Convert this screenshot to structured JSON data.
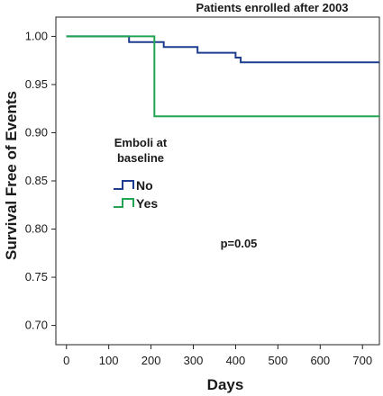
{
  "chart_data": {
    "type": "line",
    "title": "Patients enrolled after 2003",
    "xlabel": "Days",
    "ylabel": "Survival Free of Events",
    "xlim": [
      -25,
      740
    ],
    "ylim": [
      0.68,
      1.02
    ],
    "x_ticks": [
      0,
      100,
      200,
      300,
      400,
      500,
      600,
      700
    ],
    "y_ticks": [
      0.7,
      0.75,
      0.8,
      0.85,
      0.9,
      0.95,
      1.0
    ],
    "y_tick_labels": [
      "0.70",
      "0.75",
      "0.80",
      "0.85",
      "0.90",
      "0.95",
      "1.00"
    ],
    "step": true,
    "legend": {
      "title_lines": [
        "Emboli at",
        "baseline"
      ],
      "placement": "middle-left"
    },
    "series": [
      {
        "name": "No",
        "color": "#1f3d8f",
        "points": [
          [
            0,
            1.0
          ],
          [
            148,
            1.0
          ],
          [
            148,
            0.994
          ],
          [
            230,
            0.994
          ],
          [
            230,
            0.989
          ],
          [
            310,
            0.989
          ],
          [
            310,
            0.983
          ],
          [
            400,
            0.983
          ],
          [
            400,
            0.978
          ],
          [
            412,
            0.978
          ],
          [
            412,
            0.973
          ],
          [
            740,
            0.973
          ]
        ]
      },
      {
        "name": "Yes",
        "color": "#22a553",
        "points": [
          [
            0,
            1.0
          ],
          [
            208,
            1.0
          ],
          [
            208,
            0.917
          ],
          [
            740,
            0.917
          ]
        ]
      }
    ],
    "annotations": [
      {
        "text": "p=0.05"
      }
    ]
  }
}
